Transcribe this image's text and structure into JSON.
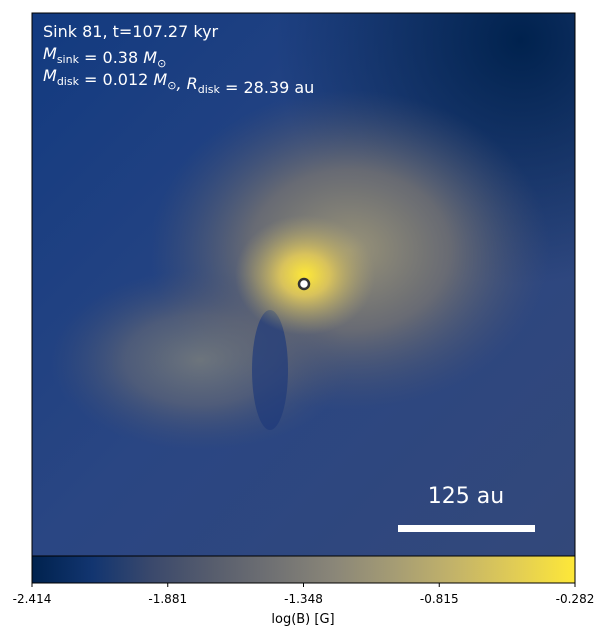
{
  "chart_data": {
    "type": "image",
    "annotations": [
      [
        {
          "text": "Sink 81, t=107.27 kyr"
        }
      ],
      [
        {
          "text": "M"
        },
        {
          "sub": "sink"
        },
        {
          "text": " = 0.38 "
        },
        {
          "text": "M"
        },
        {
          "sub": "⊙"
        }
      ],
      [
        {
          "text": "M"
        },
        {
          "sub": "disk"
        },
        {
          "text": " = 0.012 "
        },
        {
          "text": "M"
        },
        {
          "sub": "⊙"
        },
        {
          "text": ", R"
        },
        {
          "sub": "disk"
        },
        {
          "text": " = 28.39 au"
        }
      ]
    ],
    "scalebar": {
      "label": "125 au"
    },
    "colorbar": {
      "label": "log(B) [G]",
      "lim": [
        -2.414,
        -0.282
      ],
      "ticks": [
        -2.414,
        -1.881,
        -1.348,
        -0.815,
        -0.282
      ],
      "colormap": [
        "#00224e",
        "#123570",
        "#3b496c",
        "#575d6d",
        "#707173",
        "#8a8678",
        "#a59c74",
        "#c3b369",
        "#e1cc55",
        "#fee838"
      ]
    }
  }
}
